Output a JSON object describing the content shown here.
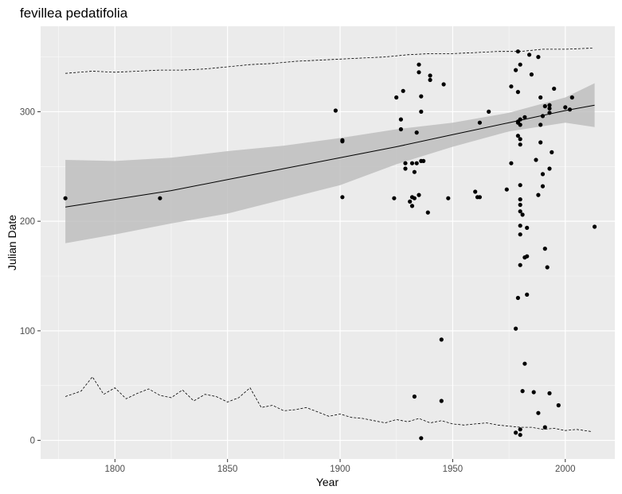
{
  "chart_data": {
    "type": "scatter",
    "title": "fevillea pedatifolia",
    "xlabel": "Year",
    "ylabel": "Julian Date",
    "xlim": [
      1767,
      2022
    ],
    "ylim": [
      -17,
      378
    ],
    "x_ticks": [
      1800,
      1850,
      1900,
      1950,
      2000
    ],
    "x_tick_labels": [
      "1800",
      "1850",
      "1900",
      "1950",
      "2000"
    ],
    "y_ticks": [
      0,
      100,
      200,
      300
    ],
    "y_tick_labels": [
      "0",
      "100",
      "200",
      "300"
    ],
    "grid": true,
    "legend": "none",
    "colors": {
      "panel": "#ebebeb",
      "grid": "#ffffff",
      "points": "#000000",
      "ribbon": "#bebebe",
      "line": "#000000"
    },
    "points": [
      {
        "x": 1778,
        "y": 221
      },
      {
        "x": 1820,
        "y": 221
      },
      {
        "x": 1898,
        "y": 301
      },
      {
        "x": 1901,
        "y": 274
      },
      {
        "x": 1901,
        "y": 273
      },
      {
        "x": 1901,
        "y": 222
      },
      {
        "x": 1924,
        "y": 221
      },
      {
        "x": 1925,
        "y": 313
      },
      {
        "x": 1927,
        "y": 293
      },
      {
        "x": 1927,
        "y": 284
      },
      {
        "x": 1928,
        "y": 319
      },
      {
        "x": 1929,
        "y": 253
      },
      {
        "x": 1929,
        "y": 248
      },
      {
        "x": 1931,
        "y": 218
      },
      {
        "x": 1932,
        "y": 222
      },
      {
        "x": 1932,
        "y": 214
      },
      {
        "x": 1932,
        "y": 253
      },
      {
        "x": 1933,
        "y": 245
      },
      {
        "x": 1933,
        "y": 221
      },
      {
        "x": 1933,
        "y": 40
      },
      {
        "x": 1934,
        "y": 281
      },
      {
        "x": 1934,
        "y": 253
      },
      {
        "x": 1935,
        "y": 343
      },
      {
        "x": 1935,
        "y": 336
      },
      {
        "x": 1935,
        "y": 224
      },
      {
        "x": 1936,
        "y": 255
      },
      {
        "x": 1936,
        "y": 314
      },
      {
        "x": 1936,
        "y": 300
      },
      {
        "x": 1936,
        "y": 2
      },
      {
        "x": 1937,
        "y": 255
      },
      {
        "x": 1939,
        "y": 208
      },
      {
        "x": 1940,
        "y": 333
      },
      {
        "x": 1940,
        "y": 329
      },
      {
        "x": 1945,
        "y": 92
      },
      {
        "x": 1945,
        "y": 36
      },
      {
        "x": 1946,
        "y": 325
      },
      {
        "x": 1948,
        "y": 221
      },
      {
        "x": 1960,
        "y": 227
      },
      {
        "x": 1961,
        "y": 222
      },
      {
        "x": 1962,
        "y": 222
      },
      {
        "x": 1962,
        "y": 290
      },
      {
        "x": 1966,
        "y": 300
      },
      {
        "x": 1974,
        "y": 229
      },
      {
        "x": 1976,
        "y": 323
      },
      {
        "x": 1976,
        "y": 253
      },
      {
        "x": 1978,
        "y": 338
      },
      {
        "x": 1978,
        "y": 102
      },
      {
        "x": 1978,
        "y": 7
      },
      {
        "x": 1979,
        "y": 355
      },
      {
        "x": 1979,
        "y": 318
      },
      {
        "x": 1979,
        "y": 291
      },
      {
        "x": 1979,
        "y": 290
      },
      {
        "x": 1979,
        "y": 278
      },
      {
        "x": 1979,
        "y": 130
      },
      {
        "x": 1980,
        "y": 343
      },
      {
        "x": 1980,
        "y": 293
      },
      {
        "x": 1980,
        "y": 288
      },
      {
        "x": 1980,
        "y": 275
      },
      {
        "x": 1980,
        "y": 270
      },
      {
        "x": 1980,
        "y": 233
      },
      {
        "x": 1980,
        "y": 220
      },
      {
        "x": 1980,
        "y": 215
      },
      {
        "x": 1980,
        "y": 209
      },
      {
        "x": 1980,
        "y": 196
      },
      {
        "x": 1980,
        "y": 188
      },
      {
        "x": 1980,
        "y": 160
      },
      {
        "x": 1980,
        "y": 10
      },
      {
        "x": 1980,
        "y": 5
      },
      {
        "x": 1981,
        "y": 45
      },
      {
        "x": 1981,
        "y": 206
      },
      {
        "x": 1982,
        "y": 295
      },
      {
        "x": 1982,
        "y": 167
      },
      {
        "x": 1982,
        "y": 70
      },
      {
        "x": 1983,
        "y": 194
      },
      {
        "x": 1983,
        "y": 168
      },
      {
        "x": 1983,
        "y": 133
      },
      {
        "x": 1984,
        "y": 352
      },
      {
        "x": 1985,
        "y": 334
      },
      {
        "x": 1986,
        "y": 44
      },
      {
        "x": 1987,
        "y": 256
      },
      {
        "x": 1988,
        "y": 350
      },
      {
        "x": 1988,
        "y": 224
      },
      {
        "x": 1988,
        "y": 25
      },
      {
        "x": 1989,
        "y": 313
      },
      {
        "x": 1989,
        "y": 288
      },
      {
        "x": 1989,
        "y": 272
      },
      {
        "x": 1990,
        "y": 296
      },
      {
        "x": 1990,
        "y": 243
      },
      {
        "x": 1990,
        "y": 232
      },
      {
        "x": 1991,
        "y": 305
      },
      {
        "x": 1991,
        "y": 175
      },
      {
        "x": 1991,
        "y": 12
      },
      {
        "x": 1992,
        "y": 158
      },
      {
        "x": 1993,
        "y": 306
      },
      {
        "x": 1993,
        "y": 303
      },
      {
        "x": 1993,
        "y": 299
      },
      {
        "x": 1993,
        "y": 248
      },
      {
        "x": 1993,
        "y": 43
      },
      {
        "x": 1994,
        "y": 263
      },
      {
        "x": 1995,
        "y": 321
      },
      {
        "x": 1997,
        "y": 32
      },
      {
        "x": 2000,
        "y": 304
      },
      {
        "x": 2002,
        "y": 302
      },
      {
        "x": 2003,
        "y": 313
      },
      {
        "x": 2013,
        "y": 195
      }
    ],
    "trend": {
      "x": [
        1778,
        1800,
        1825,
        1850,
        1875,
        1900,
        1925,
        1950,
        1975,
        2000,
        2013
      ],
      "y": [
        213,
        220,
        228,
        238,
        248,
        258,
        268,
        279,
        290,
        301,
        306
      ],
      "lower": [
        180,
        188,
        198,
        207,
        220,
        233,
        252,
        268,
        282,
        290,
        286
      ],
      "upper": [
        256,
        255,
        258,
        264,
        269,
        276,
        284,
        290,
        299,
        313,
        326
      ]
    },
    "dashed_upper": {
      "x": [
        1778,
        1790,
        1800,
        1810,
        1820,
        1830,
        1840,
        1850,
        1860,
        1870,
        1880,
        1890,
        1900,
        1910,
        1920,
        1930,
        1940,
        1950,
        1960,
        1970,
        1980,
        1990,
        2000,
        2012
      ],
      "y": [
        335,
        337,
        336,
        337,
        338,
        338,
        339,
        341,
        343,
        344,
        346,
        347,
        348,
        349,
        350,
        352,
        353,
        353,
        354,
        355,
        355,
        357,
        357,
        358
      ]
    },
    "dashed_lower": {
      "x": [
        1778,
        1785,
        1790,
        1795,
        1800,
        1805,
        1810,
        1815,
        1820,
        1825,
        1830,
        1835,
        1840,
        1845,
        1850,
        1855,
        1860,
        1865,
        1870,
        1875,
        1880,
        1885,
        1890,
        1895,
        1900,
        1905,
        1910,
        1915,
        1920,
        1925,
        1930,
        1935,
        1940,
        1945,
        1950,
        1955,
        1960,
        1965,
        1970,
        1975,
        1980,
        1985,
        1990,
        1995,
        2000,
        2005,
        2012
      ],
      "y": [
        40,
        45,
        58,
        42,
        48,
        38,
        43,
        47,
        41,
        39,
        46,
        36,
        42,
        40,
        35,
        39,
        48,
        30,
        32,
        27,
        28,
        30,
        26,
        22,
        24,
        21,
        20,
        18,
        16,
        19,
        17,
        20,
        16,
        18,
        15,
        14,
        15,
        16,
        14,
        13,
        12,
        12,
        10,
        11,
        9,
        10,
        8
      ]
    }
  }
}
